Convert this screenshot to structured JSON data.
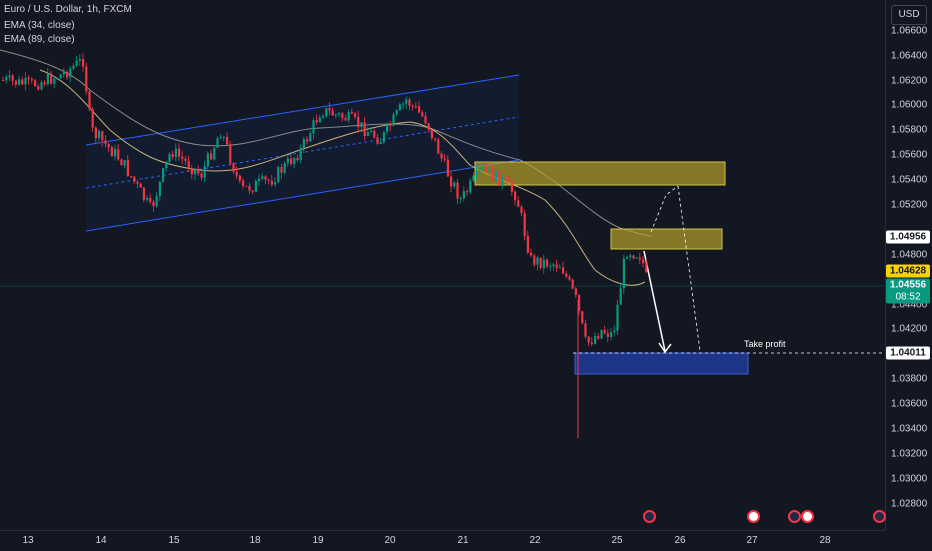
{
  "header": {
    "symbol_title": "Euro / U.S. Dollar, 1h, FXCM",
    "indicator_ema34": "EMA (34, close)",
    "indicator_ema89": "EMA (89, close)",
    "currency_button": "USD"
  },
  "price_axis": {
    "ticks": [
      "1.06600",
      "1.06400",
      "1.06200",
      "1.06000",
      "1.05800",
      "1.05600",
      "1.05400",
      "1.05200",
      "1.04800",
      "1.04400",
      "1.04200",
      "1.03800",
      "1.03600",
      "1.03400",
      "1.03200",
      "1.03000",
      "1.02800"
    ]
  },
  "price_tags": {
    "zone_price": "1.04956",
    "ema_price": "1.04628",
    "last_price": "1.04556",
    "countdown": "08:52",
    "take_profit_price": "1.04011"
  },
  "annotations": {
    "take_profit_label": "Take profit"
  },
  "time_axis": {
    "ticks": [
      "13",
      "14",
      "15",
      "18",
      "19",
      "20",
      "21",
      "22",
      "25",
      "26",
      "27",
      "28"
    ]
  },
  "colors": {
    "background": "#131722",
    "bull": "#089981",
    "bear": "#f23645",
    "channel": "#2962ff",
    "supply_zone": "#b5a22a",
    "demand_zone": "#1f3a93",
    "ema34": "#c9b37a",
    "ema89": "#8c8c8c"
  },
  "event_icons": [
    "economic-event-icon",
    "us-flag-event-icon",
    "economic-event-icon",
    "us-flag-event-icon",
    "economic-event-icon"
  ]
}
